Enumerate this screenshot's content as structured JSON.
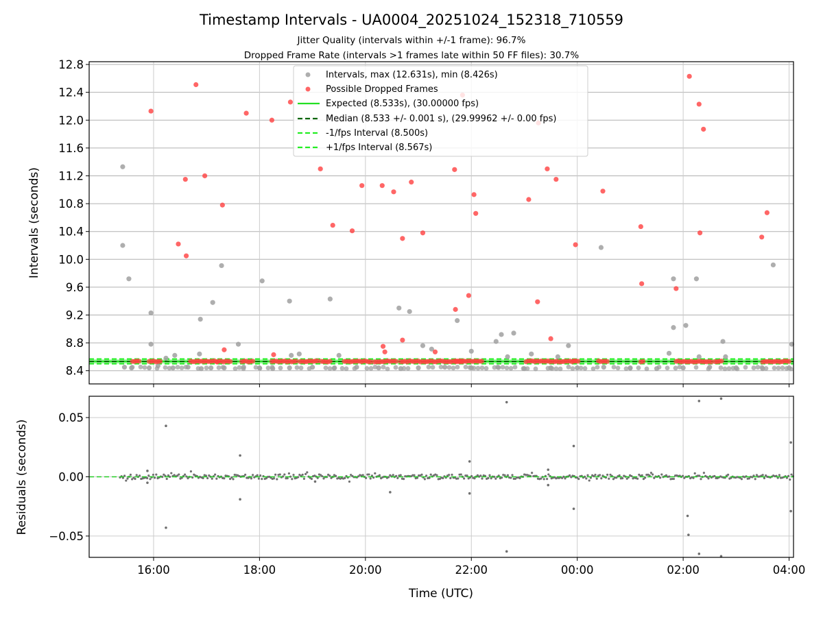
{
  "chart_data": {
    "type": "scatter",
    "title": "Timestamp Intervals - UA0004_20251024_152318_710559",
    "subtitles": [
      "Jitter Quality (intervals within +/-1 frame): 96.7%",
      "Dropped Frame Rate (intervals >1 frames late within 50 FF files): 30.7%"
    ],
    "x_axis": {
      "label": "Time (UTC)",
      "range": [
        "14:47",
        "04:05"
      ],
      "ticks": [
        "16:00",
        "18:00",
        "20:00",
        "22:00",
        "00:00",
        "02:00",
        "04:00"
      ]
    },
    "top_panel": {
      "ylabel": "Intervals (seconds)",
      "ylim": [
        8.21,
        12.84
      ],
      "yticks": [
        "8.4",
        "8.8",
        "9.2",
        "9.6",
        "10.0",
        "10.4",
        "10.8",
        "11.2",
        "11.6",
        "12.0",
        "12.4",
        "12.8"
      ],
      "grid": true,
      "legend_position": "top-center",
      "legend": [
        "Intervals, max (12.631s), min (8.426s)",
        "Possible Dropped Frames",
        "Expected (8.533s), (30.00000 fps)",
        "Median (8.533 +/- 0.001 s), (29.99962 +/- 0.00 fps)",
        "-1/fps Interval (8.500s)",
        "+1/fps Interval (8.567s)"
      ],
      "colors": {
        "intervals": "#a0a0a0",
        "dropped": "#ff4040",
        "expected": "#22e022",
        "median": "#006400",
        "fps_band": "#22ee22"
      },
      "reference_lines": {
        "expected": 8.533,
        "median": 8.533,
        "minus_1_fps": 8.5,
        "plus_1_fps": 8.567
      },
      "series": [
        {
          "name": "Intervals, max (12.631s), min (8.426s)",
          "points": [
            [
              "15:25",
              11.33
            ],
            [
              "15:25",
              10.2
            ],
            [
              "15:32",
              9.72
            ],
            [
              "15:57",
              9.23
            ],
            [
              "15:57",
              8.78
            ],
            [
              "16:24",
              8.62
            ],
            [
              "16:14",
              8.58
            ],
            [
              "16:52",
              8.64
            ],
            [
              "16:53",
              9.14
            ],
            [
              "17:07",
              9.38
            ],
            [
              "17:17",
              9.91
            ],
            [
              "17:36",
              8.78
            ],
            [
              "18:03",
              9.69
            ],
            [
              "18:34",
              9.4
            ],
            [
              "18:36",
              8.62
            ],
            [
              "18:45",
              8.64
            ],
            [
              "19:20",
              9.43
            ],
            [
              "19:30",
              8.62
            ],
            [
              "20:38",
              9.3
            ],
            [
              "20:50",
              9.25
            ],
            [
              "21:05",
              8.76
            ],
            [
              "21:15",
              8.71
            ],
            [
              "21:44",
              9.12
            ],
            [
              "22:00",
              8.68
            ],
            [
              "22:28",
              8.82
            ],
            [
              "22:34",
              8.92
            ],
            [
              "22:48",
              8.94
            ],
            [
              "22:41",
              8.6
            ],
            [
              "23:08",
              8.64
            ],
            [
              "23:38",
              8.6
            ],
            [
              "23:50",
              8.76
            ],
            [
              "00:27",
              10.17
            ],
            [
              "01:44",
              8.65
            ],
            [
              "01:49",
              9.72
            ],
            [
              "01:49",
              9.02
            ],
            [
              "02:03",
              9.05
            ],
            [
              "02:15",
              9.72
            ],
            [
              "02:18",
              8.6
            ],
            [
              "02:45",
              8.82
            ],
            [
              "02:48",
              8.6
            ],
            [
              "03:42",
              9.92
            ],
            [
              "04:03",
              8.78
            ],
            [
              "15:27",
              8.45
            ],
            [
              "15:35",
              8.44
            ],
            [
              "15:55",
              8.44
            ],
            [
              "16:05",
              8.47
            ],
            [
              "16:22",
              8.44
            ],
            [
              "16:39",
              8.45
            ],
            [
              "16:54",
              8.43
            ],
            [
              "17:05",
              8.44
            ],
            [
              "17:20",
              8.44
            ],
            [
              "17:42",
              8.45
            ],
            [
              "18:00",
              8.44
            ],
            [
              "18:15",
              8.43
            ],
            [
              "18:34",
              8.44
            ],
            [
              "19:00",
              8.45
            ],
            [
              "19:25",
              8.44
            ],
            [
              "19:50",
              8.45
            ],
            [
              "20:15",
              8.44
            ],
            [
              "20:40",
              8.43
            ],
            [
              "21:00",
              8.44
            ],
            [
              "21:30",
              8.45
            ],
            [
              "22:00",
              8.44
            ],
            [
              "22:30",
              8.45
            ],
            [
              "23:00",
              8.43
            ],
            [
              "23:30",
              8.44
            ],
            [
              "00:00",
              8.44
            ],
            [
              "00:30",
              8.45
            ],
            [
              "01:00",
              8.44
            ],
            [
              "01:30",
              8.43
            ],
            [
              "02:00",
              8.44
            ],
            [
              "02:30",
              8.45
            ],
            [
              "03:00",
              8.44
            ],
            [
              "03:30",
              8.43
            ],
            [
              "04:00",
              8.44
            ]
          ]
        },
        {
          "name": "Possible Dropped Frames",
          "points": [
            [
              "15:57",
              12.13
            ],
            [
              "16:28",
              10.22
            ],
            [
              "16:36",
              11.15
            ],
            [
              "16:37",
              10.05
            ],
            [
              "16:48",
              12.51
            ],
            [
              "16:58",
              11.2
            ],
            [
              "17:18",
              10.78
            ],
            [
              "17:20",
              8.7
            ],
            [
              "17:45",
              12.1
            ],
            [
              "18:14",
              12.0
            ],
            [
              "18:16",
              8.63
            ],
            [
              "18:35",
              12.26
            ],
            [
              "19:09",
              11.3
            ],
            [
              "19:23",
              10.49
            ],
            [
              "19:45",
              10.41
            ],
            [
              "19:56",
              11.06
            ],
            [
              "20:19",
              11.06
            ],
            [
              "20:20",
              8.75
            ],
            [
              "20:22",
              8.67
            ],
            [
              "20:32",
              10.97
            ],
            [
              "20:42",
              10.3
            ],
            [
              "20:42",
              8.84
            ],
            [
              "20:52",
              11.11
            ],
            [
              "21:05",
              10.38
            ],
            [
              "21:19",
              8.67
            ],
            [
              "21:41",
              11.29
            ],
            [
              "21:42",
              9.28
            ],
            [
              "21:50",
              12.36
            ],
            [
              "21:57",
              9.48
            ],
            [
              "22:03",
              10.93
            ],
            [
              "22:05",
              10.66
            ],
            [
              "23:05",
              10.86
            ],
            [
              "23:15",
              9.39
            ],
            [
              "23:16",
              11.96
            ],
            [
              "23:26",
              11.3
            ],
            [
              "23:30",
              8.86
            ],
            [
              "23:36",
              11.15
            ],
            [
              "23:58",
              10.21
            ],
            [
              "00:29",
              10.98
            ],
            [
              "01:12",
              10.47
            ],
            [
              "01:13",
              9.65
            ],
            [
              "01:52",
              9.58
            ],
            [
              "02:07",
              12.63
            ],
            [
              "02:18",
              12.23
            ],
            [
              "02:19",
              10.38
            ],
            [
              "02:23",
              11.87
            ],
            [
              "03:29",
              10.32
            ],
            [
              "03:35",
              10.67
            ]
          ]
        }
      ]
    },
    "bottom_panel": {
      "ylabel": "Residuals (seconds)",
      "ylim": [
        -0.068,
        0.068
      ],
      "yticks": [
        "−0.05",
        "0.00",
        "0.05"
      ],
      "grid": true,
      "color": "#707070",
      "reference_line": 0.0,
      "outliers": [
        [
          "16:14",
          0.043
        ],
        [
          "16:14",
          -0.043
        ],
        [
          "17:38",
          0.018
        ],
        [
          "17:38",
          -0.019
        ],
        [
          "22:40",
          0.063
        ],
        [
          "22:40",
          -0.063
        ],
        [
          "23:56",
          0.026
        ],
        [
          "23:56",
          -0.027
        ],
        [
          "02:05",
          -0.033
        ],
        [
          "02:06",
          -0.049
        ],
        [
          "02:18",
          0.064
        ],
        [
          "02:18",
          -0.065
        ],
        [
          "02:43",
          0.066
        ],
        [
          "02:43",
          -0.067
        ],
        [
          "04:02",
          0.029
        ],
        [
          "04:02",
          -0.029
        ],
        [
          "20:28",
          -0.013
        ],
        [
          "21:58",
          0.013
        ],
        [
          "21:58",
          -0.014
        ],
        [
          "23:27",
          0.006
        ],
        [
          "23:27",
          -0.007
        ],
        [
          "19:03",
          -0.004
        ],
        [
          "15:53",
          0.005
        ],
        [
          "15:53",
          -0.005
        ]
      ]
    }
  }
}
